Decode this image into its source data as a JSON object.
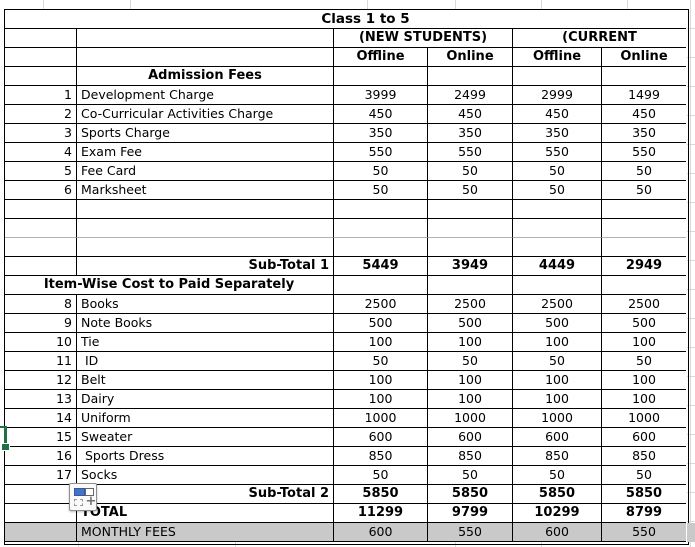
{
  "table": {
    "title": "Class 1 to 5",
    "groups": [
      "(NEW STUDENTS)",
      "(CURRENT"
    ],
    "modes": [
      "Offline",
      "Online",
      "Offline",
      "Online"
    ],
    "rows": [
      {
        "type": "section",
        "label": "Admission Fees",
        "values": [
          "",
          "",
          "",
          ""
        ]
      },
      {
        "type": "item",
        "num": "1",
        "label": "Development Charge",
        "values": [
          "3999",
          "2499",
          "2999",
          "1499"
        ]
      },
      {
        "type": "item",
        "num": "2",
        "label": "Co-Curricular Activities Charge",
        "values": [
          "450",
          "450",
          "450",
          "450"
        ]
      },
      {
        "type": "item",
        "num": "3",
        "label": "Sports Charge",
        "values": [
          "350",
          "350",
          "350",
          "350"
        ]
      },
      {
        "type": "item",
        "num": "4",
        "label": "Exam Fee",
        "values": [
          "550",
          "550",
          "550",
          "550"
        ]
      },
      {
        "type": "item",
        "num": "5",
        "label": "Fee Card",
        "values": [
          "50",
          "50",
          "50",
          "50"
        ]
      },
      {
        "type": "item",
        "num": "6",
        "label": "Marksheet",
        "values": [
          "50",
          "50",
          "50",
          "50"
        ]
      },
      {
        "type": "blank",
        "values": [
          "",
          "",
          "",
          ""
        ]
      },
      {
        "type": "blank-grey",
        "values": [
          "",
          "",
          "",
          ""
        ]
      },
      {
        "type": "blank",
        "values": [
          "",
          "",
          "",
          ""
        ]
      },
      {
        "type": "subtotal",
        "label": "Sub-Total 1",
        "values": [
          "5449",
          "3949",
          "4449",
          "2949"
        ]
      },
      {
        "type": "section-wide",
        "label": "Item-Wise Cost to Paid Separately",
        "values": [
          "",
          "",
          "",
          ""
        ]
      },
      {
        "type": "item",
        "num": "8",
        "label": "Books",
        "values": [
          "2500",
          "2500",
          "2500",
          "2500"
        ]
      },
      {
        "type": "item",
        "num": "9",
        "label": "Note Books",
        "values": [
          "500",
          "500",
          "500",
          "500"
        ]
      },
      {
        "type": "item",
        "num": "10",
        "label": "Tie",
        "values": [
          "100",
          "100",
          "100",
          "100"
        ]
      },
      {
        "type": "item",
        "num": "11",
        "label": " ID",
        "values": [
          "50",
          "50",
          "50",
          "50"
        ]
      },
      {
        "type": "item",
        "num": "12",
        "label": "Belt",
        "values": [
          "100",
          "100",
          "100",
          "100"
        ]
      },
      {
        "type": "item",
        "num": "13",
        "label": "Dairy",
        "values": [
          "100",
          "100",
          "100",
          "100"
        ]
      },
      {
        "type": "item",
        "num": "14",
        "label": "Uniform",
        "values": [
          "1000",
          "1000",
          "1000",
          "1000"
        ]
      },
      {
        "type": "item",
        "num": "15",
        "label": "Sweater",
        "values": [
          "600",
          "600",
          "600",
          "600"
        ]
      },
      {
        "type": "item",
        "num": "16",
        "label": " Sports Dress",
        "values": [
          "850",
          "850",
          "850",
          "850"
        ]
      },
      {
        "type": "item",
        "num": "17",
        "label": "Socks",
        "values": [
          "50",
          "50",
          "50",
          "50"
        ]
      },
      {
        "type": "subtotal",
        "label": "Sub-Total 2",
        "values": [
          "5850",
          "5850",
          "5850",
          "5850"
        ]
      },
      {
        "type": "total",
        "label": "TOTAL",
        "values": [
          "11299",
          "9799",
          "10299",
          "8799"
        ]
      },
      {
        "type": "monthly",
        "label": "MONTHLY FEES",
        "values": [
          "600",
          "550",
          "600",
          "550"
        ]
      }
    ]
  },
  "icons": {
    "insert_options": "insert-options-icon",
    "selection_handle": "cell-fill-handle-icon"
  },
  "colors": {
    "cell_border": "#000000",
    "margin_grid": "#d9d9d9",
    "monthly_row_fill": "#c9c9c9",
    "selection_green": "#1e7145",
    "insert_icon_blue": "#4472c4"
  }
}
